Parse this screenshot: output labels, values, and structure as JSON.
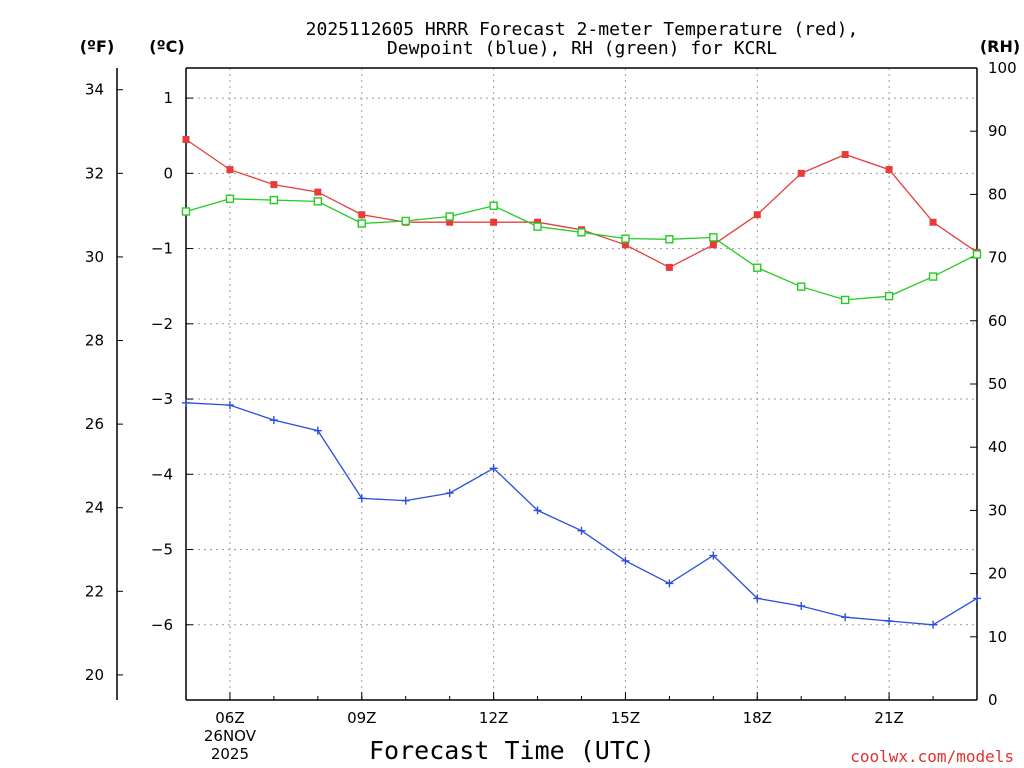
{
  "chart_data": {
    "type": "line",
    "title": "2025112605 HRRR Forecast 2-meter Temperature (red),",
    "subtitle": "Dewpoint (blue), RH (green) for KCRL",
    "xlabel": "Forecast Time (UTC)",
    "units": {
      "fahrenheit": "(ºF)",
      "celsius": "(ºC)",
      "rh": "(RH)"
    },
    "x_hours": [
      5,
      6,
      7,
      8,
      9,
      10,
      11,
      12,
      13,
      14,
      15,
      16,
      17,
      18,
      19,
      20,
      21,
      22,
      23
    ],
    "xlim": [
      5,
      23
    ],
    "x_ticks": [
      {
        "hour": 6,
        "label": "06Z",
        "extra": [
          "26NOV",
          "2025"
        ]
      },
      {
        "hour": 9,
        "label": "09Z"
      },
      {
        "hour": 12,
        "label": "12Z"
      },
      {
        "hour": 15,
        "label": "15Z"
      },
      {
        "hour": 18,
        "label": "18Z"
      },
      {
        "hour": 21,
        "label": "21Z"
      }
    ],
    "celsius_axis": {
      "range": [
        -7.0,
        1.4
      ],
      "ticks": [
        1,
        0,
        -1,
        -2,
        -3,
        -4,
        -5,
        -6
      ]
    },
    "fahrenheit_axis": {
      "range": [
        19.4,
        34.52
      ],
      "ticks": [
        34,
        32,
        30,
        28,
        26,
        24,
        22,
        20
      ]
    },
    "rh_axis": {
      "range": [
        0,
        100
      ],
      "ticks": [
        0,
        10,
        20,
        30,
        40,
        50,
        60,
        70,
        80,
        90,
        100
      ]
    },
    "grid": "dotted",
    "series": [
      {
        "name": "2-meter Temperature",
        "axis": "celsius",
        "color": "#e83c3c",
        "marker": "filled-square",
        "values": [
          0.45,
          0.05,
          -0.15,
          -0.25,
          -0.55,
          -0.65,
          -0.65,
          -0.65,
          -0.65,
          -0.75,
          -0.95,
          -1.25,
          -0.95,
          -0.55,
          0.0,
          0.25,
          0.05,
          -0.65,
          -1.05
        ]
      },
      {
        "name": "Dewpoint",
        "axis": "celsius",
        "color": "#2a4fe0",
        "marker": "plus",
        "values": [
          -3.05,
          -3.08,
          -3.28,
          -3.42,
          -4.32,
          -4.35,
          -4.25,
          -3.92,
          -4.48,
          -4.75,
          -5.15,
          -5.45,
          -5.08,
          -5.65,
          -5.75,
          -5.9,
          -5.95,
          -6.0,
          -5.65
        ]
      },
      {
        "name": "RH",
        "axis": "rh",
        "color": "#22cc22",
        "marker": "open-square",
        "values": [
          77.3,
          79.3,
          79.1,
          78.9,
          75.4,
          75.8,
          76.5,
          78.2,
          74.9,
          74.0,
          73.0,
          72.9,
          73.2,
          68.4,
          65.4,
          63.3,
          63.9,
          67.0,
          70.5
        ]
      }
    ]
  },
  "credit": "coolwx.com/models"
}
